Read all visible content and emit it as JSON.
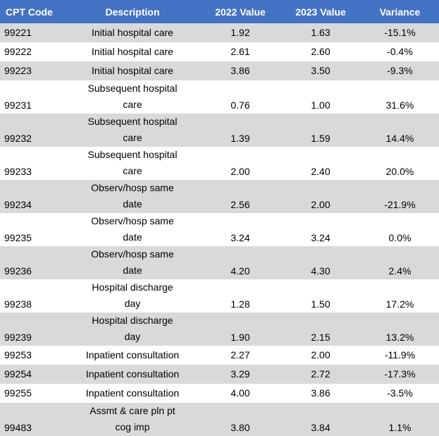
{
  "header": {
    "code": "CPT Code",
    "description": "Description",
    "v2022": "2022 Value",
    "v2023": "2023 Value",
    "variance": "Variance"
  },
  "rows": [
    {
      "code": "99221",
      "desc": [
        "Initial hospital care"
      ],
      "v2022": "1.92",
      "v2023": "1.63",
      "variance": "-15.1%"
    },
    {
      "code": "99222",
      "desc": [
        "Initial hospital care"
      ],
      "v2022": "2.61",
      "v2023": "2.60",
      "variance": "-0.4%"
    },
    {
      "code": "99223",
      "desc": [
        "Initial hospital care"
      ],
      "v2022": "3.86",
      "v2023": "3.50",
      "variance": "-9.3%"
    },
    {
      "code": "99231",
      "desc": [
        "Subsequent hospital",
        "care"
      ],
      "v2022": "0.76",
      "v2023": "1.00",
      "variance": "31.6%"
    },
    {
      "code": "99232",
      "desc": [
        "Subsequent hospital",
        "care"
      ],
      "v2022": "1.39",
      "v2023": "1.59",
      "variance": "14.4%"
    },
    {
      "code": "99233",
      "desc": [
        "Subsequent hospital",
        "care"
      ],
      "v2022": "2.00",
      "v2023": "2.40",
      "variance": "20.0%"
    },
    {
      "code": "99234",
      "desc": [
        "Observ/hosp same",
        "date"
      ],
      "v2022": "2.56",
      "v2023": "2.00",
      "variance": "-21.9%"
    },
    {
      "code": "99235",
      "desc": [
        "Observ/hosp same",
        "date"
      ],
      "v2022": "3.24",
      "v2023": "3.24",
      "variance": "0.0%"
    },
    {
      "code": "99236",
      "desc": [
        "Observ/hosp same",
        "date"
      ],
      "v2022": "4.20",
      "v2023": "4.30",
      "variance": "2.4%"
    },
    {
      "code": "99238",
      "desc": [
        "Hospital discharge",
        "day"
      ],
      "v2022": "1.28",
      "v2023": "1.50",
      "variance": "17.2%"
    },
    {
      "code": "99239",
      "desc": [
        "Hospital discharge",
        "day"
      ],
      "v2022": "1.90",
      "v2023": "2.15",
      "variance": "13.2%"
    },
    {
      "code": "99253",
      "desc": [
        "Inpatient consultation"
      ],
      "v2022": "2.27",
      "v2023": "2.00",
      "variance": "-11.9%"
    },
    {
      "code": "99254",
      "desc": [
        "Inpatient consultation"
      ],
      "v2022": "3.29",
      "v2023": "2.72",
      "variance": "-17.3%"
    },
    {
      "code": "99255",
      "desc": [
        "Inpatient consultation"
      ],
      "v2022": "4.00",
      "v2023": "3.86",
      "variance": "-3.5%"
    },
    {
      "code": "99483",
      "desc": [
        "Assmt & care pln pt",
        "cog imp"
      ],
      "v2022": "3.80",
      "v2023": "3.84",
      "variance": "1.1%"
    }
  ]
}
